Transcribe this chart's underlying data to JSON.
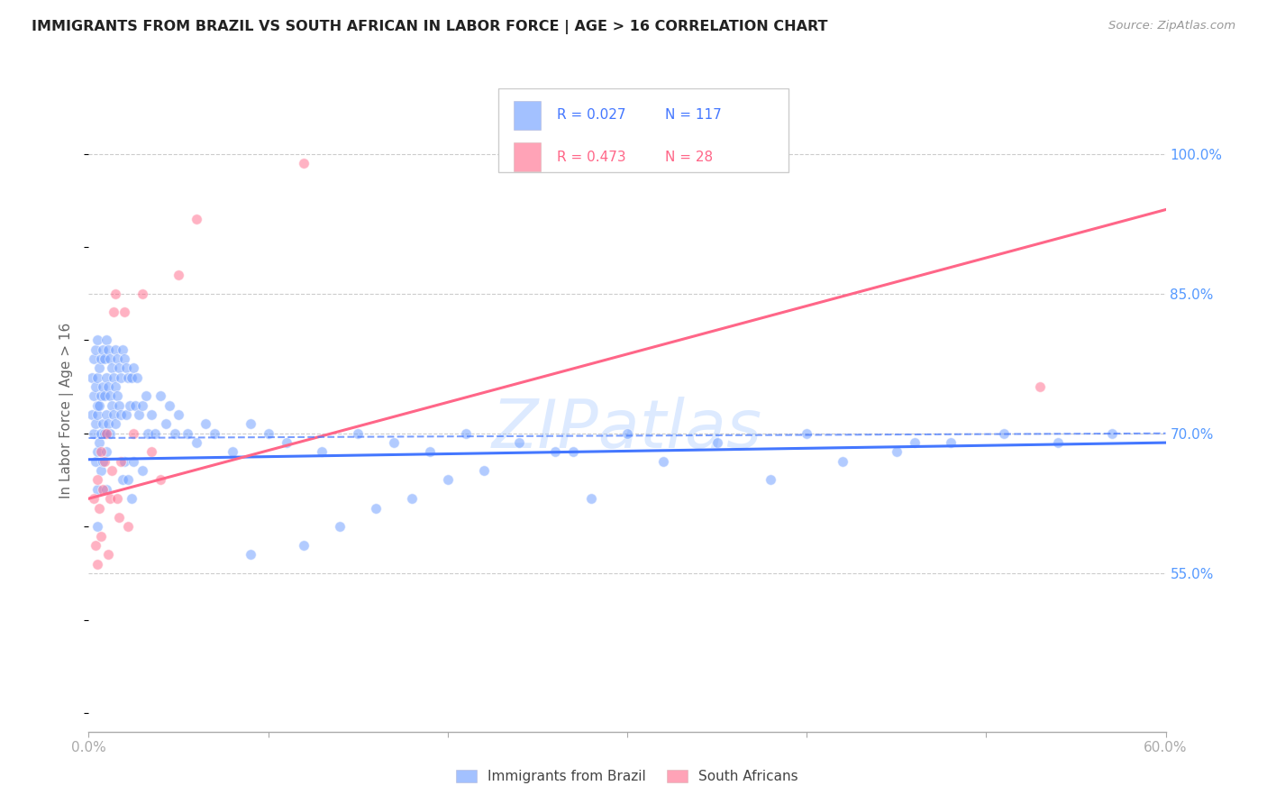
{
  "title": "IMMIGRANTS FROM BRAZIL VS SOUTH AFRICAN IN LABOR FORCE | AGE > 16 CORRELATION CHART",
  "source": "Source: ZipAtlas.com",
  "ylabel": "In Labor Force | Age > 16",
  "xlim": [
    0.0,
    0.6
  ],
  "ylim": [
    0.38,
    1.07
  ],
  "yticks": [
    0.55,
    0.7,
    0.85,
    1.0
  ],
  "ytick_labels": [
    "55.0%",
    "70.0%",
    "85.0%",
    "100.0%"
  ],
  "xticks": [
    0.0,
    0.1,
    0.2,
    0.3,
    0.4,
    0.5,
    0.6
  ],
  "xtick_labels": [
    "0.0%",
    "",
    "",
    "",
    "",
    "",
    "60.0%"
  ],
  "background_color": "#ffffff",
  "grid_color": "#cccccc",
  "axis_color": "#aaaaaa",
  "tick_color": "#5599ff",
  "watermark": "ZIPatlas",
  "watermark_color": "#aaccff",
  "legend_brazil_r": "R = 0.027",
  "legend_brazil_n": "N = 117",
  "legend_sa_r": "R = 0.473",
  "legend_sa_n": "N = 28",
  "brazil_color": "#6699ff",
  "sa_color": "#ff6688",
  "brazil_line_color": "#4477ff",
  "sa_line_color": "#ff6688",
  "brazil_dot_alpha": 0.5,
  "sa_dot_alpha": 0.5,
  "dot_size": 70,
  "brazil_scatter_x": [
    0.002,
    0.002,
    0.003,
    0.003,
    0.003,
    0.004,
    0.004,
    0.004,
    0.004,
    0.005,
    0.005,
    0.005,
    0.005,
    0.005,
    0.005,
    0.005,
    0.006,
    0.006,
    0.006,
    0.007,
    0.007,
    0.007,
    0.007,
    0.008,
    0.008,
    0.008,
    0.008,
    0.009,
    0.009,
    0.009,
    0.01,
    0.01,
    0.01,
    0.01,
    0.01,
    0.011,
    0.011,
    0.011,
    0.012,
    0.012,
    0.012,
    0.013,
    0.013,
    0.014,
    0.014,
    0.015,
    0.015,
    0.015,
    0.016,
    0.016,
    0.017,
    0.017,
    0.018,
    0.018,
    0.019,
    0.019,
    0.02,
    0.02,
    0.021,
    0.021,
    0.022,
    0.022,
    0.023,
    0.024,
    0.024,
    0.025,
    0.025,
    0.026,
    0.027,
    0.028,
    0.03,
    0.03,
    0.032,
    0.033,
    0.035,
    0.037,
    0.04,
    0.043,
    0.045,
    0.048,
    0.05,
    0.055,
    0.06,
    0.065,
    0.07,
    0.08,
    0.09,
    0.1,
    0.11,
    0.13,
    0.15,
    0.17,
    0.19,
    0.21,
    0.24,
    0.27,
    0.3,
    0.35,
    0.4,
    0.46,
    0.09,
    0.12,
    0.14,
    0.16,
    0.18,
    0.2,
    0.22,
    0.26,
    0.28,
    0.32,
    0.38,
    0.42,
    0.45,
    0.48,
    0.51,
    0.54,
    0.57
  ],
  "brazil_scatter_y": [
    0.76,
    0.72,
    0.78,
    0.74,
    0.7,
    0.79,
    0.75,
    0.71,
    0.67,
    0.8,
    0.76,
    0.72,
    0.68,
    0.64,
    0.6,
    0.73,
    0.77,
    0.73,
    0.69,
    0.78,
    0.74,
    0.7,
    0.66,
    0.79,
    0.75,
    0.71,
    0.67,
    0.78,
    0.74,
    0.7,
    0.8,
    0.76,
    0.72,
    0.68,
    0.64,
    0.79,
    0.75,
    0.71,
    0.78,
    0.74,
    0.7,
    0.77,
    0.73,
    0.76,
    0.72,
    0.79,
    0.75,
    0.71,
    0.78,
    0.74,
    0.77,
    0.73,
    0.76,
    0.72,
    0.79,
    0.65,
    0.78,
    0.67,
    0.77,
    0.72,
    0.76,
    0.65,
    0.73,
    0.76,
    0.63,
    0.77,
    0.67,
    0.73,
    0.76,
    0.72,
    0.73,
    0.66,
    0.74,
    0.7,
    0.72,
    0.7,
    0.74,
    0.71,
    0.73,
    0.7,
    0.72,
    0.7,
    0.69,
    0.71,
    0.7,
    0.68,
    0.71,
    0.7,
    0.69,
    0.68,
    0.7,
    0.69,
    0.68,
    0.7,
    0.69,
    0.68,
    0.7,
    0.69,
    0.7,
    0.69,
    0.57,
    0.58,
    0.6,
    0.62,
    0.63,
    0.65,
    0.66,
    0.68,
    0.63,
    0.67,
    0.65,
    0.67,
    0.68,
    0.69,
    0.7,
    0.69,
    0.7
  ],
  "sa_scatter_x": [
    0.003,
    0.004,
    0.005,
    0.005,
    0.006,
    0.007,
    0.007,
    0.008,
    0.009,
    0.01,
    0.011,
    0.012,
    0.013,
    0.014,
    0.015,
    0.016,
    0.017,
    0.018,
    0.02,
    0.022,
    0.025,
    0.03,
    0.035,
    0.04,
    0.05,
    0.06,
    0.12,
    0.53
  ],
  "sa_scatter_y": [
    0.63,
    0.58,
    0.56,
    0.65,
    0.62,
    0.68,
    0.59,
    0.64,
    0.67,
    0.7,
    0.57,
    0.63,
    0.66,
    0.83,
    0.85,
    0.63,
    0.61,
    0.67,
    0.83,
    0.6,
    0.7,
    0.85,
    0.68,
    0.65,
    0.87,
    0.93,
    0.99,
    0.75
  ],
  "brazil_trendline_x": [
    0.0,
    0.6
  ],
  "brazil_trendline_y": [
    0.672,
    0.69
  ],
  "sa_trendline_x": [
    0.0,
    0.6
  ],
  "sa_trendline_y": [
    0.63,
    0.94
  ],
  "dashed_line_x": [
    0.0,
    0.6
  ],
  "dashed_line_y": [
    0.695,
    0.7
  ]
}
